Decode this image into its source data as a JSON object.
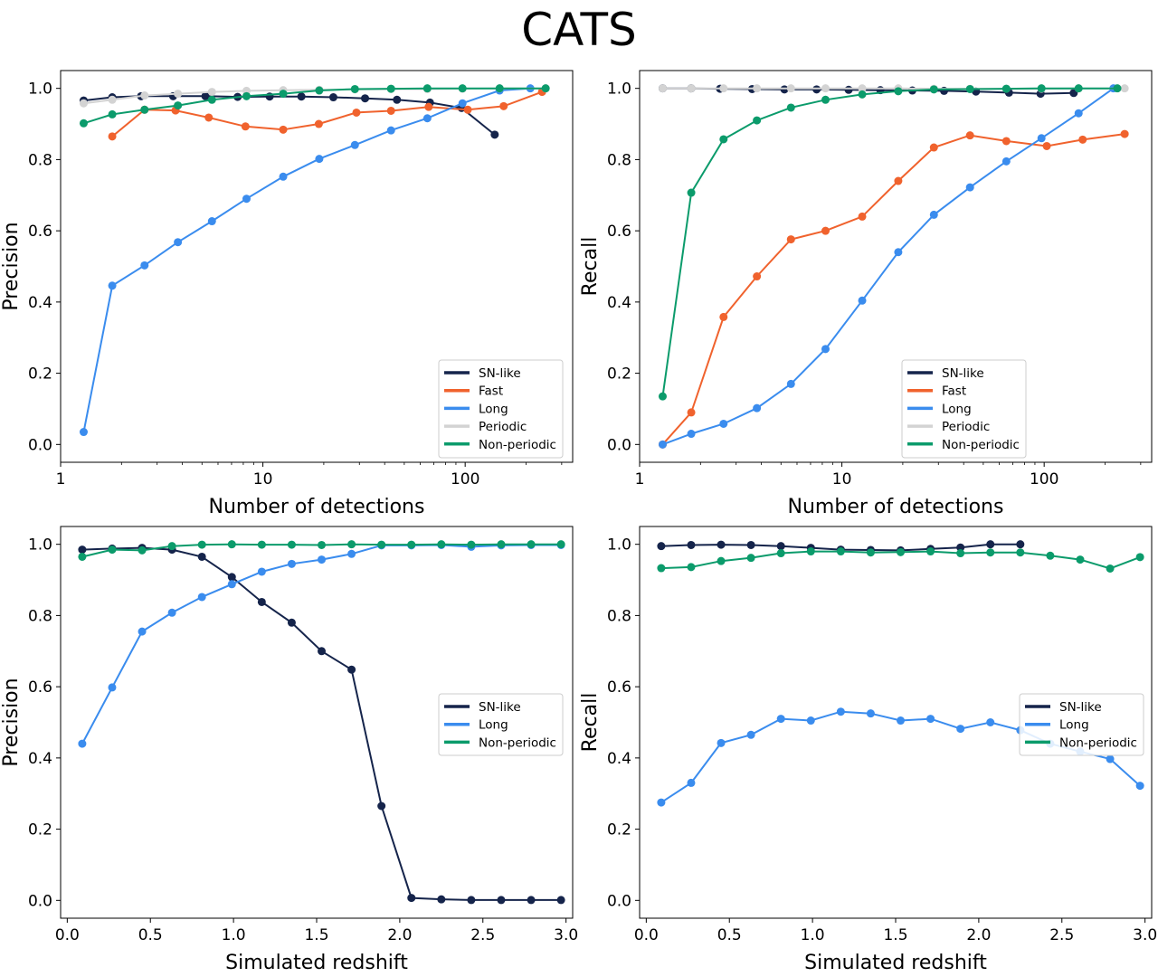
{
  "figure": {
    "title": "CATS"
  },
  "colors": {
    "SN-like": "#15244b",
    "Fast": "#f0622d",
    "Long": "#3a8cee",
    "Periodic": "#d3d3d3",
    "Non-periodic": "#0b9b6b"
  },
  "chart_data": [
    {
      "type": "line",
      "xscale": "log",
      "xlim": [
        1,
        340
      ],
      "ylim": [
        -0.05,
        1.05
      ],
      "xticks": [
        1,
        10,
        100
      ],
      "xtick_labels": [
        "1",
        "10",
        "100"
      ],
      "yticks": [
        0.0,
        0.2,
        0.4,
        0.6,
        0.8,
        1.0
      ],
      "ytick_labels": [
        "0.0",
        "0.2",
        "0.4",
        "0.6",
        "0.8",
        "1.0"
      ],
      "xlabel": "Number of detections",
      "ylabel": "Precision",
      "legend_position": "lower-right",
      "legend": [
        "SN-like",
        "Fast",
        "Long",
        "Periodic",
        "Non-periodic"
      ],
      "series": [
        {
          "name": "SN-like",
          "x": [
            1.3,
            1.8,
            2.5,
            3.6,
            5.2,
            7.5,
            10.8,
            15.5,
            22.3,
            32,
            46,
            67,
            96,
            140
          ],
          "y": [
            0.966,
            0.975,
            0.978,
            0.978,
            0.978,
            0.976,
            0.977,
            0.977,
            0.975,
            0.972,
            0.968,
            0.96,
            0.945,
            0.87
          ]
        },
        {
          "name": "Fast",
          "x": [
            1.8,
            2.6,
            3.7,
            5.4,
            8.2,
            12.6,
            18.9,
            29,
            43,
            66,
            103,
            155,
            240
          ],
          "y": [
            0.865,
            0.94,
            0.938,
            0.918,
            0.893,
            0.884,
            0.9,
            0.932,
            0.937,
            0.948,
            0.94,
            0.95,
            0.99
          ]
        },
        {
          "name": "Long",
          "x": [
            1.3,
            1.8,
            2.6,
            3.8,
            5.6,
            8.3,
            12.6,
            19,
            28.5,
            43,
            65,
            97,
            148,
            210
          ],
          "y": [
            0.035,
            0.446,
            0.503,
            0.568,
            0.627,
            0.69,
            0.752,
            0.802,
            0.841,
            0.882,
            0.916,
            0.958,
            0.994,
            1.0
          ]
        },
        {
          "name": "Periodic",
          "x": [
            1.3,
            1.8,
            2.6,
            3.8,
            5.6,
            8.3,
            12.6,
            19,
            28.5,
            43,
            65,
            97,
            148,
            250
          ],
          "y": [
            0.958,
            0.968,
            0.98,
            0.985,
            0.99,
            0.993,
            0.995,
            0.996,
            0.997,
            0.998,
            0.998,
            0.999,
            1.0,
            1.0
          ]
        },
        {
          "name": "Non-periodic",
          "x": [
            1.3,
            1.8,
            2.6,
            3.8,
            5.6,
            8.3,
            12.6,
            19,
            28.5,
            43,
            65,
            97,
            148,
            250
          ],
          "y": [
            0.902,
            0.927,
            0.94,
            0.952,
            0.968,
            0.978,
            0.985,
            0.994,
            0.998,
            0.999,
            1.0,
            1.0,
            1.0,
            1.0
          ]
        }
      ]
    },
    {
      "type": "line",
      "xscale": "log",
      "xlim": [
        1,
        340
      ],
      "ylim": [
        -0.05,
        1.05
      ],
      "xticks": [
        1,
        10,
        100
      ],
      "xtick_labels": [
        "1",
        "10",
        "100"
      ],
      "yticks": [
        0.0,
        0.2,
        0.4,
        0.6,
        0.8,
        1.0
      ],
      "ytick_labels": [
        "0.0",
        "0.2",
        "0.4",
        "0.6",
        "0.8",
        "1.0"
      ],
      "xlabel": "Number of detections",
      "ylabel": "Recall",
      "legend_position": "lower-right",
      "legend": [
        "SN-like",
        "Fast",
        "Long",
        "Periodic",
        "Non-periodic"
      ],
      "series": [
        {
          "name": "SN-like",
          "x": [
            1.3,
            1.8,
            2.5,
            3.6,
            5.2,
            7.5,
            10.8,
            15.5,
            22.3,
            32,
            46,
            67,
            96,
            140
          ],
          "y": [
            1.0,
            1.0,
            0.999,
            0.998,
            0.997,
            0.997,
            0.996,
            0.995,
            0.994,
            0.993,
            0.991,
            0.988,
            0.985,
            0.987
          ]
        },
        {
          "name": "Fast",
          "x": [
            1.3,
            1.8,
            2.6,
            3.8,
            5.6,
            8.3,
            12.6,
            19,
            28.5,
            43,
            65,
            103,
            155,
            250
          ],
          "y": [
            0.0,
            0.09,
            0.358,
            0.472,
            0.576,
            0.6,
            0.64,
            0.74,
            0.834,
            0.868,
            0.852,
            0.838,
            0.856,
            0.872
          ]
        },
        {
          "name": "Long",
          "x": [
            1.3,
            1.8,
            2.6,
            3.8,
            5.6,
            8.3,
            12.6,
            19,
            28.5,
            43,
            65,
            97,
            148,
            220
          ],
          "y": [
            0.0,
            0.03,
            0.058,
            0.102,
            0.17,
            0.268,
            0.404,
            0.54,
            0.645,
            0.722,
            0.795,
            0.86,
            0.93,
            1.0
          ]
        },
        {
          "name": "Periodic",
          "x": [
            1.3,
            1.8,
            2.6,
            3.8,
            5.6,
            8.3,
            12.6,
            19,
            28.5,
            43,
            65,
            97,
            148,
            250
          ],
          "y": [
            1.0,
            1.0,
            1.0,
            1.0,
            1.0,
            1.0,
            1.0,
            1.0,
            0.999,
            0.999,
            0.999,
            0.999,
            1.0,
            1.0
          ]
        },
        {
          "name": "Non-periodic",
          "x": [
            1.3,
            1.8,
            2.6,
            3.8,
            5.6,
            8.3,
            12.6,
            19,
            28.5,
            43,
            65,
            97,
            148,
            230
          ],
          "y": [
            0.135,
            0.707,
            0.857,
            0.91,
            0.946,
            0.968,
            0.983,
            0.992,
            0.997,
            0.998,
            0.999,
            1.0,
            1.0,
            1.0
          ]
        }
      ]
    },
    {
      "type": "line",
      "xscale": "linear",
      "xlim": [
        -0.04,
        3.04
      ],
      "ylim": [
        -0.05,
        1.05
      ],
      "xticks": [
        0.0,
        0.5,
        1.0,
        1.5,
        2.0,
        2.5,
        3.0
      ],
      "xtick_labels": [
        "0.0",
        "0.5",
        "1.0",
        "1.5",
        "2.0",
        "2.5",
        "3.0"
      ],
      "yticks": [
        0.0,
        0.2,
        0.4,
        0.6,
        0.8,
        1.0
      ],
      "ytick_labels": [
        "0.0",
        "0.2",
        "0.4",
        "0.6",
        "0.8",
        "1.0"
      ],
      "xlabel": "Simulated redshift",
      "ylabel": "Precision",
      "legend_position": "center-right",
      "legend": [
        "SN-like",
        "Long",
        "Non-periodic"
      ],
      "series": [
        {
          "name": "SN-like",
          "x": [
            0.09,
            0.27,
            0.45,
            0.63,
            0.81,
            0.99,
            1.17,
            1.35,
            1.53,
            1.71,
            1.89,
            2.07,
            2.25,
            2.43,
            2.61,
            2.79,
            2.97
          ],
          "y": [
            0.985,
            0.988,
            0.99,
            0.985,
            0.965,
            0.908,
            0.838,
            0.78,
            0.7,
            0.648,
            0.265,
            0.007,
            0.003,
            0.001,
            0.001,
            0.001,
            0.001
          ]
        },
        {
          "name": "Long",
          "x": [
            0.09,
            0.27,
            0.45,
            0.63,
            0.81,
            0.99,
            1.17,
            1.35,
            1.53,
            1.71,
            1.89,
            2.07,
            2.25,
            2.43,
            2.61,
            2.79,
            2.97
          ],
          "y": [
            0.44,
            0.598,
            0.755,
            0.808,
            0.852,
            0.888,
            0.923,
            0.945,
            0.957,
            0.973,
            0.997,
            0.997,
            0.998,
            0.993,
            0.997,
            0.998,
            0.998
          ]
        },
        {
          "name": "Non-periodic",
          "x": [
            0.09,
            0.27,
            0.45,
            0.63,
            0.81,
            0.99,
            1.17,
            1.35,
            1.53,
            1.71,
            1.89,
            2.07,
            2.25,
            2.43,
            2.61,
            2.79,
            2.97
          ],
          "y": [
            0.965,
            0.985,
            0.983,
            0.995,
            0.999,
            1.0,
            0.999,
            0.999,
            0.998,
            1.0,
            0.999,
            0.999,
            1.0,
            0.999,
            1.0,
            1.0,
            1.0
          ]
        }
      ]
    },
    {
      "type": "line",
      "xscale": "linear",
      "xlim": [
        -0.04,
        3.04
      ],
      "ylim": [
        -0.05,
        1.05
      ],
      "xticks": [
        0.0,
        0.5,
        1.0,
        1.5,
        2.0,
        2.5,
        3.0
      ],
      "xtick_labels": [
        "0.0",
        "0.5",
        "1.0",
        "1.5",
        "2.0",
        "2.5",
        "3.0"
      ],
      "yticks": [
        0.0,
        0.2,
        0.4,
        0.6,
        0.8,
        1.0
      ],
      "ytick_labels": [
        "0.0",
        "0.2",
        "0.4",
        "0.6",
        "0.8",
        "1.0"
      ],
      "xlabel": "Simulated redshift",
      "ylabel": "Recall",
      "legend_position": "center-right",
      "legend": [
        "SN-like",
        "Long",
        "Non-periodic"
      ],
      "series": [
        {
          "name": "SN-like",
          "x": [
            0.09,
            0.27,
            0.45,
            0.63,
            0.81,
            0.99,
            1.17,
            1.35,
            1.53,
            1.71,
            1.89,
            2.07,
            2.25
          ],
          "y": [
            0.995,
            0.998,
            0.999,
            0.998,
            0.995,
            0.99,
            0.985,
            0.984,
            0.983,
            0.987,
            0.991,
            1.0,
            1.0
          ]
        },
        {
          "name": "Long",
          "x": [
            0.09,
            0.27,
            0.45,
            0.63,
            0.81,
            0.99,
            1.17,
            1.35,
            1.53,
            1.71,
            1.89,
            2.07,
            2.25,
            2.43,
            2.61,
            2.79,
            2.97
          ],
          "y": [
            0.275,
            0.33,
            0.442,
            0.465,
            0.51,
            0.505,
            0.53,
            0.525,
            0.505,
            0.51,
            0.482,
            0.5,
            0.478,
            0.44,
            0.418,
            0.397,
            0.322
          ]
        },
        {
          "name": "Non-periodic",
          "x": [
            0.09,
            0.27,
            0.45,
            0.63,
            0.81,
            0.99,
            1.17,
            1.35,
            1.53,
            1.71,
            1.89,
            2.07,
            2.25,
            2.43,
            2.61,
            2.79,
            2.97
          ],
          "y": [
            0.933,
            0.936,
            0.953,
            0.962,
            0.975,
            0.98,
            0.98,
            0.977,
            0.978,
            0.98,
            0.975,
            0.977,
            0.977,
            0.968,
            0.957,
            0.932,
            0.964
          ]
        }
      ]
    }
  ]
}
